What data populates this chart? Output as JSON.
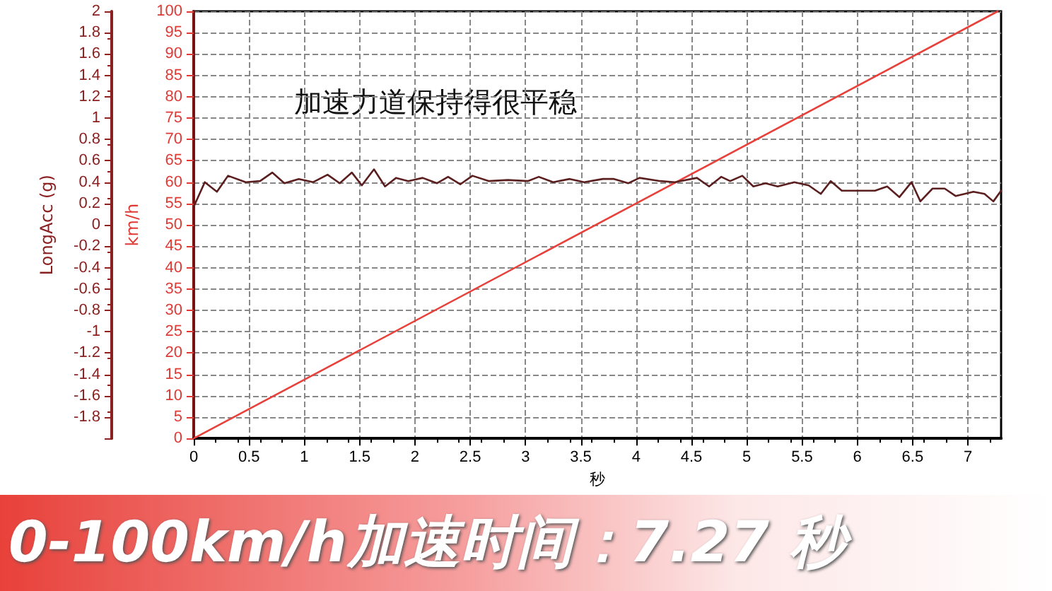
{
  "chart_data": {
    "type": "line",
    "xlabel": "秒",
    "ylabel": "km/h",
    "y2label": "LongAcc (g)",
    "annotations": [
      "加速力道保持得很平稳",
      "0-100km/h加速时间：7.27 秒"
    ],
    "xlim": [
      0,
      7.3
    ],
    "xticks": [
      0,
      0.5,
      1,
      1.5,
      2,
      2.5,
      3,
      3.5,
      4,
      4.5,
      5,
      5.5,
      6,
      6.5,
      7
    ],
    "ylim": [
      0,
      100
    ],
    "yticks": [
      0,
      5,
      10,
      15,
      20,
      25,
      30,
      35,
      40,
      45,
      50,
      55,
      60,
      65,
      70,
      75,
      80,
      85,
      90,
      95,
      100
    ],
    "y2lim": [
      -2,
      2
    ],
    "y2ticks": [
      {
        "value": -2,
        "label": null
      },
      -1.8,
      -1.6,
      -1.4,
      -1.2,
      -1,
      -0.8,
      -0.6,
      -0.4,
      -0.2,
      0,
      0.2,
      0.4,
      0.6,
      0.8,
      1,
      1.2,
      1.4,
      1.6,
      1.8,
      2
    ],
    "grid": true,
    "marker": "none",
    "line_style": "solid",
    "series": [
      {
        "color": "#e8403a",
        "x": [
          0,
          7.27
        ],
        "values": [
          0,
          100
        ]
      },
      {
        "color": "#5c1f1f",
        "axis": "y2",
        "x": [
          0,
          0.1,
          0.21,
          0.31,
          0.47,
          0.6,
          0.71,
          0.82,
          0.95,
          1.08,
          1.21,
          1.32,
          1.43,
          1.52,
          1.63,
          1.73,
          1.83,
          1.94,
          2.07,
          2.2,
          2.3,
          2.41,
          2.52,
          2.67,
          2.84,
          3.02,
          3.12,
          3.25,
          3.4,
          3.53,
          3.7,
          3.8,
          3.93,
          4.03,
          4.22,
          4.35,
          4.55,
          4.66,
          4.77,
          4.85,
          4.96,
          5.06,
          5.17,
          5.28,
          5.43,
          5.56,
          5.67,
          5.76,
          5.86,
          6.16,
          6.27,
          6.38,
          6.49,
          6.57,
          6.68,
          6.79,
          6.89,
          7.05,
          7.15,
          7.23,
          7.3
        ],
        "values": [
          0.17,
          0.4,
          0.31,
          0.46,
          0.4,
          0.41,
          0.49,
          0.39,
          0.43,
          0.4,
          0.47,
          0.39,
          0.49,
          0.37,
          0.52,
          0.36,
          0.44,
          0.41,
          0.44,
          0.39,
          0.45,
          0.38,
          0.46,
          0.41,
          0.42,
          0.41,
          0.45,
          0.4,
          0.43,
          0.4,
          0.43,
          0.43,
          0.39,
          0.44,
          0.41,
          0.4,
          0.44,
          0.36,
          0.45,
          0.41,
          0.46,
          0.36,
          0.39,
          0.36,
          0.4,
          0.37,
          0.29,
          0.41,
          0.32,
          0.32,
          0.36,
          0.26,
          0.4,
          0.22,
          0.34,
          0.34,
          0.27,
          0.31,
          0.29,
          0.22,
          0.32
        ]
      }
    ]
  }
}
